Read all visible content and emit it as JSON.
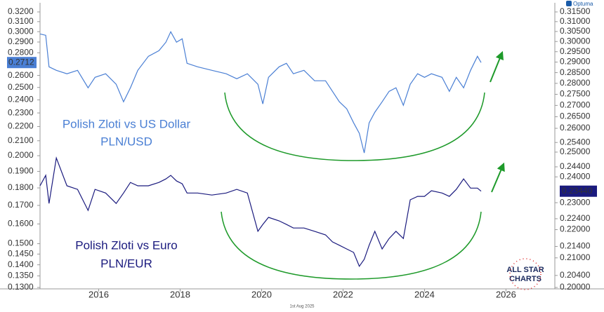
{
  "chart_data": {
    "type": "line",
    "log_scale": true,
    "date_stamp": "1st Aug 2025",
    "brand": "Optuma",
    "watermark": [
      "ALL STAR",
      "CHARTS"
    ],
    "xlim": [
      2014.56,
      2027.2
    ],
    "xticks": [
      2016,
      2018,
      2020,
      2022,
      2024,
      2026
    ],
    "ylim": [
      0.13,
      0.32
    ],
    "yticks": [
      {
        "value": 0.32,
        "label": "0.3200"
      },
      {
        "value": 0.31,
        "label": "0.3100"
      },
      {
        "value": 0.3,
        "label": "0.3000"
      },
      {
        "value": 0.29,
        "label": "0.2900"
      },
      {
        "value": 0.28,
        "label": "0.2800"
      },
      {
        "value": 0.26,
        "label": "0.2600"
      },
      {
        "value": 0.25,
        "label": "0.2500"
      },
      {
        "value": 0.24,
        "label": "0.2400"
      },
      {
        "value": 0.23,
        "label": "0.2300"
      },
      {
        "value": 0.22,
        "label": "0.2200"
      },
      {
        "value": 0.21,
        "label": "0.2100"
      },
      {
        "value": 0.2,
        "label": "0.2000"
      },
      {
        "value": 0.19,
        "label": "0.1900"
      },
      {
        "value": 0.18,
        "label": "0.1800"
      },
      {
        "value": 0.17,
        "label": "0.1700"
      },
      {
        "value": 0.16,
        "label": "0.1600"
      },
      {
        "value": 0.15,
        "label": "0.1500"
      },
      {
        "value": 0.145,
        "label": "0.1450"
      },
      {
        "value": 0.14,
        "label": "0.1400"
      },
      {
        "value": 0.135,
        "label": "0.1350"
      },
      {
        "value": 0.13,
        "label": "0.1300"
      }
    ],
    "y2lim": [
      0.2,
      0.315
    ],
    "y2ticks": [
      {
        "value": 0.315,
        "label": "0.31500"
      },
      {
        "value": 0.31,
        "label": "0.31000"
      },
      {
        "value": 0.305,
        "label": "0.30500"
      },
      {
        "value": 0.3,
        "label": "0.30000"
      },
      {
        "value": 0.295,
        "label": "0.29500"
      },
      {
        "value": 0.29,
        "label": "0.29000"
      },
      {
        "value": 0.285,
        "label": "0.28500"
      },
      {
        "value": 0.28,
        "label": "0.28000"
      },
      {
        "value": 0.275,
        "label": "0.27500"
      },
      {
        "value": 0.27,
        "label": "0.27000"
      },
      {
        "value": 0.265,
        "label": "0.26500"
      },
      {
        "value": 0.26,
        "label": "0.26000"
      },
      {
        "value": 0.254,
        "label": "0.25400"
      },
      {
        "value": 0.25,
        "label": "0.25000"
      },
      {
        "value": 0.244,
        "label": "0.24400"
      },
      {
        "value": 0.24,
        "label": "0.24000"
      },
      {
        "value": 0.23,
        "label": "0.23000"
      },
      {
        "value": 0.224,
        "label": "0.22400"
      },
      {
        "value": 0.22,
        "label": "0.22000"
      },
      {
        "value": 0.214,
        "label": "0.21400"
      },
      {
        "value": 0.21,
        "label": "0.21000"
      },
      {
        "value": 0.204,
        "label": "0.20400"
      },
      {
        "value": 0.2,
        "label": "0.20000"
      }
    ],
    "x": [
      2014.56,
      2014.7,
      2014.78,
      2014.96,
      2015.22,
      2015.48,
      2015.74,
      2015.91,
      2016.17,
      2016.43,
      2016.61,
      2016.78,
      2016.96,
      2017.22,
      2017.48,
      2017.65,
      2017.77,
      2017.91,
      2018.05,
      2018.17,
      2018.43,
      2018.78,
      2019.13,
      2019.39,
      2019.65,
      2019.91,
      2020.03,
      2020.17,
      2020.43,
      2020.61,
      2020.78,
      2021.04,
      2021.3,
      2021.57,
      2021.74,
      2021.91,
      2022.09,
      2022.26,
      2022.4,
      2022.52,
      2022.64,
      2022.78,
      2022.96,
      2023.13,
      2023.3,
      2023.48,
      2023.65,
      2023.83,
      2024.0,
      2024.17,
      2024.43,
      2024.61,
      2024.78,
      2024.96,
      2025.13,
      2025.3,
      2025.39
    ],
    "series": [
      {
        "name": "Polish Zloti vs US Dollar",
        "ticker": "PLN/USD",
        "color": "#4a7fd4",
        "axis": "y",
        "last_label": "0.2712",
        "values": [
          0.2978,
          0.2965,
          0.2674,
          0.2644,
          0.2614,
          0.2644,
          0.2497,
          0.2584,
          0.2614,
          0.2526,
          0.2385,
          0.2497,
          0.2644,
          0.2768,
          0.2819,
          0.2898,
          0.2999,
          0.2898,
          0.2931,
          0.2705,
          0.2674,
          0.2644,
          0.2614,
          0.2572,
          0.2614,
          0.2526,
          0.2369,
          0.2584,
          0.2674,
          0.2705,
          0.2614,
          0.2644,
          0.2555,
          0.2555,
          0.2468,
          0.2385,
          0.2331,
          0.2227,
          0.2152,
          0.2018,
          0.2227,
          0.2305,
          0.2385,
          0.2468,
          0.2497,
          0.2358,
          0.2526,
          0.2614,
          0.2584,
          0.2614,
          0.2584,
          0.2468,
          0.2584,
          0.2497,
          0.2644,
          0.2768,
          0.2712
        ]
      },
      {
        "name": "Polish Zloti vs Euro",
        "ticker": "PLN/EUR",
        "color": "#1a1a7e",
        "axis": "y2",
        "last_label": "0.23440",
        "values": [
          0.2365,
          0.2406,
          0.2297,
          0.2476,
          0.2365,
          0.2351,
          0.2271,
          0.2351,
          0.2337,
          0.2297,
          0.2337,
          0.2378,
          0.2365,
          0.2365,
          0.2378,
          0.2392,
          0.2406,
          0.2384,
          0.2373,
          0.2337,
          0.2337,
          0.2329,
          0.2337,
          0.2351,
          0.2337,
          0.2194,
          0.2219,
          0.2245,
          0.2232,
          0.2219,
          0.2206,
          0.2206,
          0.2194,
          0.2181,
          0.2156,
          0.2144,
          0.2131,
          0.2119,
          0.2071,
          0.2095,
          0.2144,
          0.2194,
          0.2131,
          0.2168,
          0.2194,
          0.2168,
          0.2311,
          0.2324,
          0.2324,
          0.2346,
          0.2337,
          0.2324,
          0.2351,
          0.2392,
          0.2356,
          0.2356,
          0.2344
        ]
      }
    ]
  }
}
